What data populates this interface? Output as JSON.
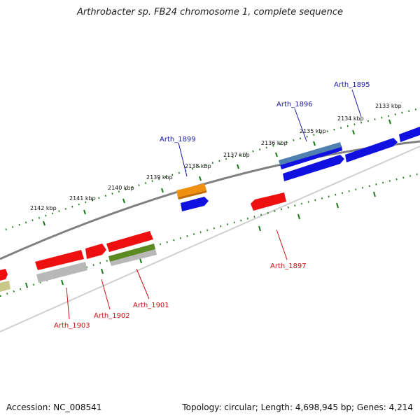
{
  "title": "Arthrobacter sp. FB24 chromosome 1, complete sequence",
  "footer": {
    "accession": "Accession: NC_008541",
    "summary": "Topology: circular; Length: 4,698,945 bp; Genes: 4,214"
  },
  "colors": {
    "backbone": "#8a8a8a",
    "tick": "#1a7a1a",
    "label_blue": "#1a1aaa",
    "label_red": "#cc1111"
  },
  "ruler": {
    "labels": [
      "2133 kbp",
      "2134 kbp",
      "2135 kbp",
      "2136 kbp",
      "2137 kbp",
      "2138 kbp",
      "2139 kbp",
      "2140 kbp",
      "2141 kbp",
      "2142 kbp"
    ]
  },
  "gene_labels": [
    {
      "text": "Arth_1895",
      "color": "#1a1aaa"
    },
    {
      "text": "Arth_1896",
      "color": "#1a1aaa"
    },
    {
      "text": "Arth_1899",
      "color": "#1a1aaa"
    },
    {
      "text": "Arth_1897",
      "color": "#cc1111"
    },
    {
      "text": "Arth_1901",
      "color": "#cc1111"
    },
    {
      "text": "Arth_1902",
      "color": "#cc1111"
    },
    {
      "text": "Arth_1903",
      "color": "#cc1111"
    }
  ]
}
